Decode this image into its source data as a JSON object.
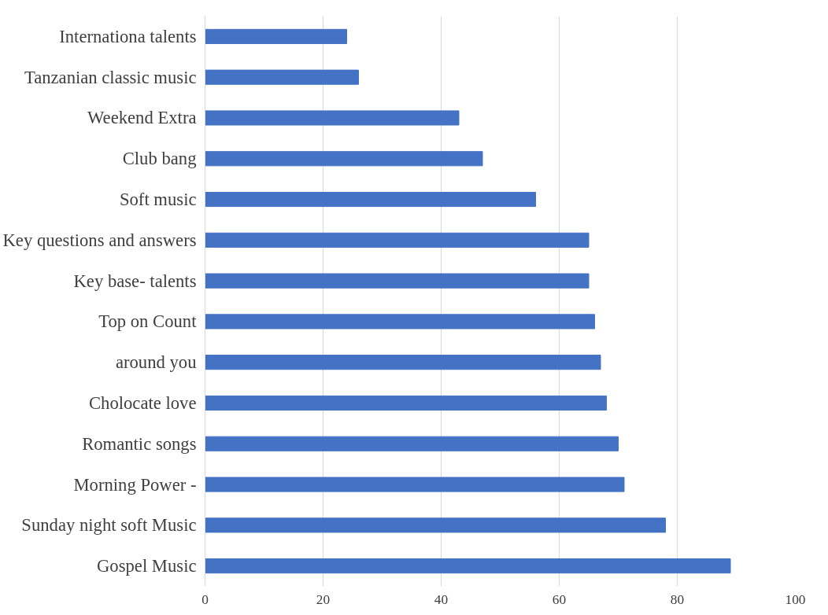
{
  "chart_data": {
    "type": "bar",
    "orientation": "horizontal",
    "categories": [
      "Internationa talents",
      "Tanzanian classic music",
      "Weekend Extra",
      "Club bang",
      "Soft music",
      "Key questions and answers",
      "Key base- talents",
      "Top on Count",
      "around you",
      "Cholocate love",
      "Romantic songs",
      "Morning Power -",
      "Sunday night soft Music",
      "Gospel Music"
    ],
    "values": [
      24,
      26,
      43,
      47,
      56,
      65,
      65,
      66,
      67,
      68,
      70,
      71,
      78,
      89
    ],
    "color": "#4472c4",
    "xlim": [
      0,
      100
    ],
    "xticks": [
      0,
      20,
      40,
      60,
      80,
      100
    ],
    "grid": "x"
  }
}
